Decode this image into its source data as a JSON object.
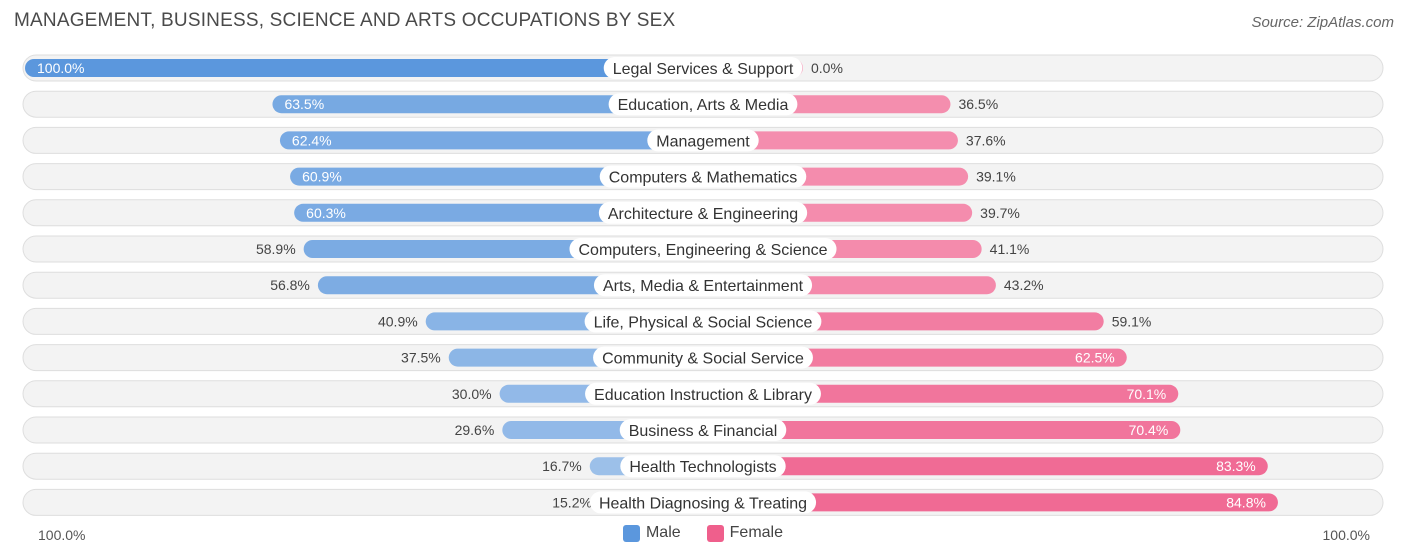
{
  "header": {
    "title": "MANAGEMENT, BUSINESS, SCIENCE AND ARTS OCCUPATIONS BY SEX",
    "source": "Source: ZipAtlas.com"
  },
  "colors": {
    "male": "#7aaae0",
    "male_strong": "#5b97dd",
    "male_light": "#a9c8ec",
    "female": "#f07aa0",
    "female_strong": "#ef5f8c",
    "female_light": "#f7a9c2",
    "track": "#eeeeee"
  },
  "chart_data": {
    "type": "bar",
    "orientation": "horizontal-diverging",
    "categories": [
      "Legal Services & Support",
      "Education, Arts & Media",
      "Management",
      "Computers & Mathematics",
      "Architecture & Engineering",
      "Computers, Engineering & Science",
      "Arts, Media & Entertainment",
      "Life, Physical & Social Science",
      "Community & Social Service",
      "Education Instruction & Library",
      "Business & Financial",
      "Health Technologists",
      "Health Diagnosing & Treating"
    ],
    "series": [
      {
        "name": "Male",
        "values": [
          100.0,
          63.5,
          62.4,
          60.9,
          60.3,
          58.9,
          56.8,
          40.9,
          37.5,
          30.0,
          29.6,
          16.7,
          15.2
        ],
        "labels": [
          "100.0%",
          "63.5%",
          "62.4%",
          "60.9%",
          "60.3%",
          "58.9%",
          "56.8%",
          "40.9%",
          "37.5%",
          "30.0%",
          "29.6%",
          "16.7%",
          "15.2%"
        ]
      },
      {
        "name": "Female",
        "values": [
          0.0,
          36.5,
          37.6,
          39.1,
          39.7,
          41.1,
          43.2,
          59.1,
          62.5,
          70.1,
          70.4,
          83.3,
          84.8
        ],
        "labels": [
          "0.0%",
          "36.5%",
          "37.6%",
          "39.1%",
          "39.7%",
          "41.1%",
          "43.2%",
          "59.1%",
          "62.5%",
          "70.1%",
          "70.4%",
          "83.3%",
          "84.8%"
        ]
      }
    ],
    "xlim": [
      0,
      100
    ],
    "axis_left_label": "100.0%",
    "axis_right_label": "100.0%",
    "legend_position": "bottom-center"
  }
}
